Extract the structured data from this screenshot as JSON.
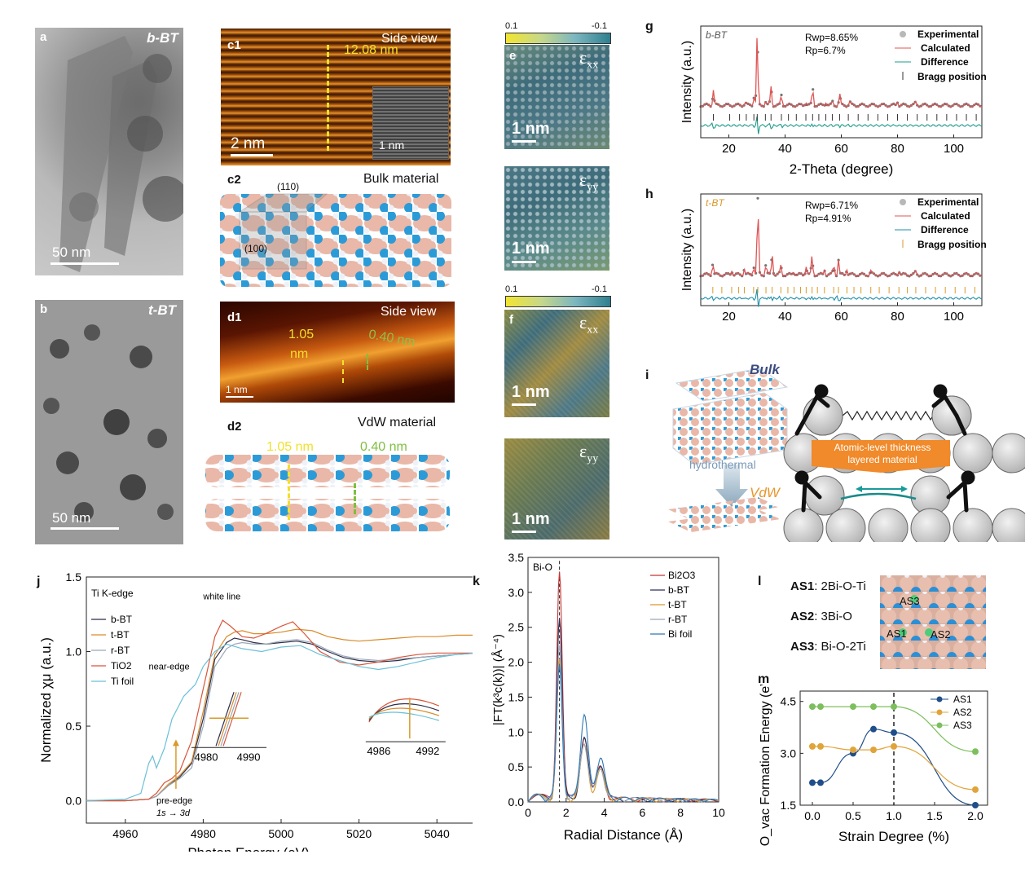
{
  "panels": {
    "a": {
      "label": "a",
      "title": "b-BT",
      "scale": "50 nm"
    },
    "b": {
      "label": "b",
      "title": "t-BT",
      "scale": "50 nm"
    },
    "c1": {
      "label": "c1",
      "title": "Side view",
      "measure": "12.08 nm",
      "scale": "2 nm",
      "inset_scale": "1 nm"
    },
    "c2": {
      "label": "c2",
      "title": "Bulk material",
      "plane1": "(110)",
      "plane2": "(100)"
    },
    "d1": {
      "label": "d1",
      "title": "Side view",
      "m1": "1.05",
      "m1b": "nm",
      "m2": "0.40 nm",
      "scale": "1 nm"
    },
    "d2": {
      "label": "d2",
      "title": "VdW material",
      "m1": "1.05 nm",
      "m2": "0.40 nm"
    },
    "e": {
      "label": "e",
      "cb_min": "0.1",
      "cb_max": "-0.1",
      "exx": "ε",
      "exx_sub": "xx",
      "eyy": "ε",
      "eyy_sub": "yy",
      "scale": "1 nm"
    },
    "f": {
      "label": "f",
      "cb_min": "0.1",
      "cb_max": "-0.1",
      "exx": "ε",
      "exx_sub": "xx",
      "eyy": "ε",
      "eyy_sub": "yy",
      "scale": "1 nm"
    },
    "i": {
      "label": "i",
      "bulk": "Bulk",
      "hydro": "hydrothermal",
      "vdw": "VdW",
      "banner1": "Atomic-level thickness",
      "banner2": "layered material"
    },
    "l": {
      "label": "l",
      "as1": "AS1",
      "as1_desc": ": 2Bi-O-Ti",
      "as2": "AS2",
      "as2_desc": ": 3Bi-O",
      "as3": "AS3",
      "as3_desc": ": Bi-O-2Ti",
      "atom1": "AS1",
      "atom2": "AS2",
      "atom3": "AS3"
    }
  },
  "colors": {
    "exp": "#b8b8b8",
    "calc": "#e05555",
    "diff_g": "#1e9c8c",
    "bragg_g": "#333333",
    "diff_h": "#1f8fa8",
    "bragg_h": "#d99a2b",
    "yellow": "#f2e02c",
    "green": "#7fbf3f"
  },
  "chart_data": [
    {
      "id": "g",
      "type": "line",
      "label": "g",
      "sample": "b-BT",
      "xlabel": "2-Theta (degree)",
      "ylabel": "Intensity (a.u.)",
      "xlim": [
        10,
        110
      ],
      "xticks": [
        20,
        40,
        60,
        80,
        100
      ],
      "rwp": "Rwp=8.65%",
      "rp": "Rp=6.7%",
      "legend": [
        "Experimental",
        "Calculated",
        "Difference",
        "Bragg position"
      ],
      "peaks": [
        14.5,
        25.8,
        28.9,
        30.1,
        33.0,
        35.0,
        38.7,
        47.4,
        49.8,
        54.5,
        56.8,
        59.4,
        63.0,
        80.0,
        86.5
      ],
      "peak_heights": [
        0.22,
        0.05,
        0.12,
        1.0,
        0.05,
        0.26,
        0.14,
        0.05,
        0.24,
        0.05,
        0.05,
        0.16,
        0.05,
        0.05,
        0.04
      ],
      "bragg": [
        14.5,
        20.3,
        23.8,
        26.2,
        28.9,
        30.1,
        33.0,
        35.0,
        38.7,
        41.2,
        44.0,
        47.4,
        49.8,
        52.0,
        54.5,
        56.8,
        59.4,
        62.5,
        66.0,
        69.5,
        73.0,
        76.5,
        80.0,
        83.5,
        87.0,
        90.5,
        94.0,
        97.5,
        101.0,
        104.5,
        108.0
      ]
    },
    {
      "id": "h",
      "type": "line",
      "label": "h",
      "sample": "t-BT",
      "xlabel": "2-Theta (degree)",
      "ylabel": "Intensity (a.u.)",
      "xlim": [
        10,
        110
      ],
      "xticks": [
        20,
        40,
        60,
        80,
        100
      ],
      "rwp": "Rwp=6.71%",
      "rp": "Rp=4.91%",
      "legend": [
        "Experimental",
        "Calculated",
        "Difference",
        "Bragg position"
      ],
      "peaks": [
        14.3,
        21.0,
        25.5,
        28.8,
        30.3,
        33.2,
        35.4,
        38.5,
        43.2,
        47.5,
        49.6,
        54.0,
        57.3,
        59.0,
        62.0,
        70.5,
        80.5,
        86.5
      ],
      "peak_heights": [
        0.16,
        0.06,
        0.08,
        0.12,
        1.0,
        0.14,
        0.28,
        0.12,
        0.06,
        0.12,
        0.25,
        0.07,
        0.14,
        0.2,
        0.08,
        0.05,
        0.06,
        0.04
      ],
      "bragg": [
        14.3,
        17.5,
        21.0,
        23.5,
        25.5,
        28.8,
        30.3,
        33.2,
        35.4,
        38.5,
        41.0,
        43.2,
        45.5,
        47.5,
        49.6,
        51.5,
        54.0,
        57.3,
        59.0,
        62.0,
        64.5,
        67.0,
        70.5,
        73.5,
        77.0,
        80.5,
        83.5,
        86.5,
        90.0,
        93.5,
        97.0,
        100.5,
        104.0,
        107.5
      ]
    },
    {
      "id": "j",
      "type": "line",
      "label": "j",
      "title": "Ti K-edge",
      "xlabel": "Photon Energy (eV)",
      "ylabel": "Normalized χμ (a.u.)",
      "xlim": [
        4950,
        5050
      ],
      "ylim": [
        -0.15,
        1.5
      ],
      "xticks": [
        4960,
        4980,
        5000,
        5020,
        5040
      ],
      "yticks": [
        0.0,
        0.5,
        1.0,
        1.5
      ],
      "annotations": {
        "white_line": "white line",
        "near_edge": "near-edge",
        "pre_edge": "pre-edge",
        "transition": "1s → 3d"
      },
      "inset1_ticks": [
        "4980",
        "4990"
      ],
      "inset2_ticks": [
        "4986",
        "4992"
      ],
      "series": [
        {
          "name": "b-BT",
          "color": "#2e2e4a",
          "x": [
            4950,
            4960,
            4966,
            4968,
            4971,
            4974,
            4977,
            4980,
            4983,
            4986,
            4988,
            4990,
            4993,
            4996,
            5000,
            5004,
            5008,
            5012,
            5016,
            5020,
            5025,
            5030,
            5035,
            5040,
            5045,
            5050
          ],
          "y": [
            0,
            0,
            0.01,
            0.03,
            0.1,
            0.16,
            0.25,
            0.55,
            0.95,
            1.06,
            1.09,
            1.08,
            1.06,
            1.05,
            1.06,
            1.07,
            1.05,
            1.0,
            0.96,
            0.94,
            0.93,
            0.94,
            0.96,
            0.97,
            0.98,
            0.99
          ]
        },
        {
          "name": "t-BT",
          "color": "#d98b2b",
          "x": [
            4950,
            4960,
            4966,
            4968,
            4971,
            4974,
            4977,
            4980,
            4983,
            4986,
            4988,
            4990,
            4993,
            4996,
            5000,
            5004,
            5008,
            5012,
            5016,
            5020,
            5025,
            5030,
            5035,
            5040,
            5045,
            5050
          ],
          "y": [
            0,
            0,
            0.01,
            0.03,
            0.11,
            0.17,
            0.26,
            0.6,
            0.98,
            1.1,
            1.13,
            1.14,
            1.12,
            1.12,
            1.13,
            1.15,
            1.14,
            1.1,
            1.08,
            1.07,
            1.08,
            1.09,
            1.1,
            1.1,
            1.11,
            1.11
          ]
        },
        {
          "name": "r-BT",
          "color": "#9aa8b8",
          "x": [
            4950,
            4960,
            4966,
            4968,
            4971,
            4974,
            4977,
            4980,
            4983,
            4986,
            4988,
            4990,
            4993,
            4996,
            5000,
            5004,
            5008,
            5012,
            5016,
            5020,
            5025,
            5030,
            5035,
            5040,
            5045,
            5050
          ],
          "y": [
            0,
            0,
            0.01,
            0.03,
            0.1,
            0.15,
            0.22,
            0.5,
            0.9,
            1.02,
            1.05,
            1.06,
            1.05,
            1.05,
            1.07,
            1.08,
            1.06,
            1.01,
            0.97,
            0.95,
            0.94,
            0.95,
            0.96,
            0.97,
            0.98,
            0.99
          ]
        },
        {
          "name": "TiO2",
          "color": "#d9553a",
          "x": [
            4950,
            4960,
            4966,
            4968,
            4970,
            4972,
            4974,
            4977,
            4980,
            4983,
            4985,
            4987,
            4990,
            4993,
            4996,
            5000,
            5003,
            5006,
            5010,
            5015,
            5020,
            5025,
            5030,
            5035,
            5040,
            5045,
            5050
          ],
          "y": [
            0,
            0,
            0.01,
            0.05,
            0.12,
            0.15,
            0.2,
            0.4,
            0.75,
            1.1,
            1.21,
            1.17,
            1.1,
            1.09,
            1.12,
            1.17,
            1.2,
            1.12,
            1.0,
            0.93,
            0.91,
            0.93,
            0.96,
            0.98,
            0.99,
            0.99,
            0.99
          ]
        },
        {
          "name": "Ti foil",
          "color": "#6bc0d8",
          "x": [
            4950,
            4960,
            4964,
            4966,
            4967,
            4968,
            4970,
            4972,
            4975,
            4978,
            4980,
            4983,
            4986,
            4990,
            4995,
            5000,
            5005,
            5010,
            5015,
            5020,
            5025,
            5030,
            5035,
            5040,
            5045,
            5050
          ],
          "y": [
            0,
            0.01,
            0.05,
            0.25,
            0.3,
            0.22,
            0.35,
            0.55,
            0.7,
            0.78,
            0.9,
            1.0,
            1.05,
            1.02,
            1.0,
            1.03,
            1.04,
            0.98,
            0.94,
            0.9,
            0.88,
            0.9,
            0.93,
            0.96,
            0.98,
            0.99
          ]
        }
      ]
    },
    {
      "id": "k",
      "type": "line",
      "label": "k",
      "xlabel": "Radial Distance (Å)",
      "ylabel": "|FT(k³c(k))| (Å⁻⁴)",
      "xlim": [
        0,
        10
      ],
      "ylim": [
        0,
        3.5
      ],
      "xticks": [
        0,
        2,
        4,
        6,
        8,
        10
      ],
      "yticks": [
        0.0,
        0.5,
        1.0,
        1.5,
        2.0,
        2.5,
        3.0,
        3.5
      ],
      "annotation": "Bi-O",
      "series": [
        {
          "name": "Bi2O3",
          "color": "#c43535",
          "peak": 3.25,
          "p2": 0.9,
          "p3": 0.45
        },
        {
          "name": "b-BT",
          "color": "#2e2e5a",
          "peak": 2.55,
          "p2": 0.85,
          "p3": 0.5
        },
        {
          "name": "t-BT",
          "color": "#d9982b",
          "peak": 1.95,
          "p2": 0.75,
          "p3": 0.4
        },
        {
          "name": "r-BT",
          "color": "#9aa8b8",
          "peak": 2.15,
          "p2": 0.8,
          "p3": 0.42
        },
        {
          "name": "Bi foil",
          "color": "#2f78b5",
          "peak": 1.9,
          "p2": 1.2,
          "p3": 0.6
        }
      ]
    },
    {
      "id": "m",
      "type": "line",
      "label": "m",
      "xlabel": "Strain Degree (%)",
      "ylabel": "O_vac Formation Energy (eV)",
      "xlim": [
        -0.15,
        2.15
      ],
      "ylim": [
        1.5,
        4.8
      ],
      "xticks": [
        0.0,
        0.5,
        1.0,
        1.5,
        2.0
      ],
      "yticks": [
        1.5,
        3.0,
        4.5
      ],
      "series": [
        {
          "name": "AS1",
          "color": "#1f4e8a",
          "x": [
            0,
            0.1,
            0.5,
            0.75,
            1.0,
            2.0
          ],
          "y": [
            2.15,
            2.15,
            3.0,
            3.7,
            3.6,
            1.5
          ]
        },
        {
          "name": "AS2",
          "color": "#e0a43a",
          "x": [
            0,
            0.1,
            0.5,
            0.75,
            1.0,
            2.0
          ],
          "y": [
            3.2,
            3.2,
            3.1,
            3.1,
            3.2,
            1.95
          ]
        },
        {
          "name": "AS3",
          "color": "#7cbf5c",
          "x": [
            0,
            0.1,
            0.5,
            0.75,
            1.0,
            2.0
          ],
          "y": [
            4.35,
            4.35,
            4.35,
            4.35,
            4.35,
            3.05
          ]
        }
      ]
    }
  ]
}
